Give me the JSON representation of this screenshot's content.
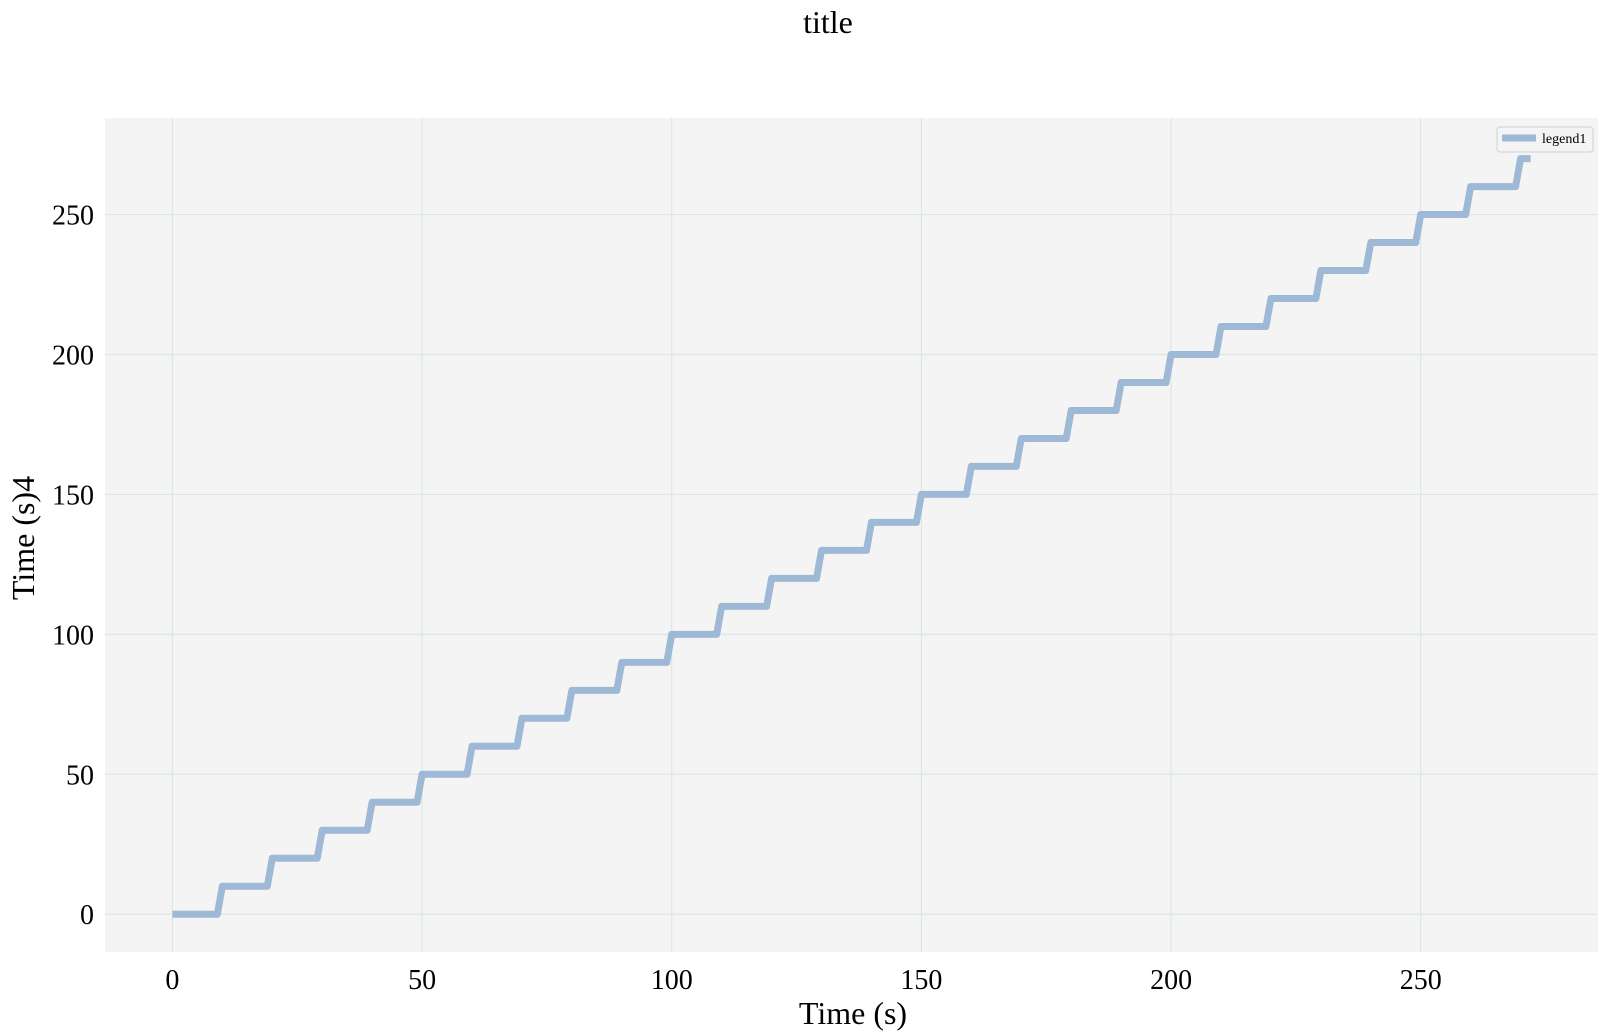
{
  "chart_data": {
    "type": "line",
    "title": "title",
    "xlabel": "Time (s)",
    "ylabel": "Time (s)4",
    "xlim": [
      -13.5,
      285.5
    ],
    "ylim": [
      -13.5,
      284.5
    ],
    "xticks": [
      0,
      50,
      100,
      150,
      200,
      250
    ],
    "yticks": [
      0,
      50,
      100,
      150,
      200,
      250
    ],
    "grid": true,
    "legend_position": "top-right",
    "series": [
      {
        "name": "legend1",
        "color": "#9db9d6",
        "x": [
          0,
          9,
          10,
          19,
          20,
          29,
          30,
          39,
          40,
          49,
          50,
          59,
          60,
          69,
          70,
          79,
          80,
          89,
          90,
          99,
          100,
          109,
          110,
          119,
          120,
          129,
          130,
          139,
          140,
          149,
          150,
          159,
          160,
          169,
          170,
          179,
          180,
          189,
          190,
          199,
          200,
          209,
          210,
          219,
          220,
          229,
          230,
          239,
          240,
          249,
          250,
          259,
          260,
          269,
          270,
          272
        ],
        "y": [
          0,
          0,
          10,
          10,
          20,
          20,
          30,
          30,
          40,
          40,
          50,
          50,
          60,
          60,
          70,
          70,
          80,
          80,
          90,
          90,
          100,
          100,
          110,
          110,
          120,
          120,
          130,
          130,
          140,
          140,
          150,
          150,
          160,
          160,
          170,
          170,
          180,
          180,
          190,
          190,
          200,
          200,
          210,
          210,
          220,
          220,
          230,
          230,
          240,
          240,
          250,
          250,
          260,
          260,
          270,
          270
        ]
      }
    ]
  },
  "colors": {
    "plot_background": "#f4f4f5",
    "grid": "#dbe7e4",
    "line": "#9db9d6"
  }
}
